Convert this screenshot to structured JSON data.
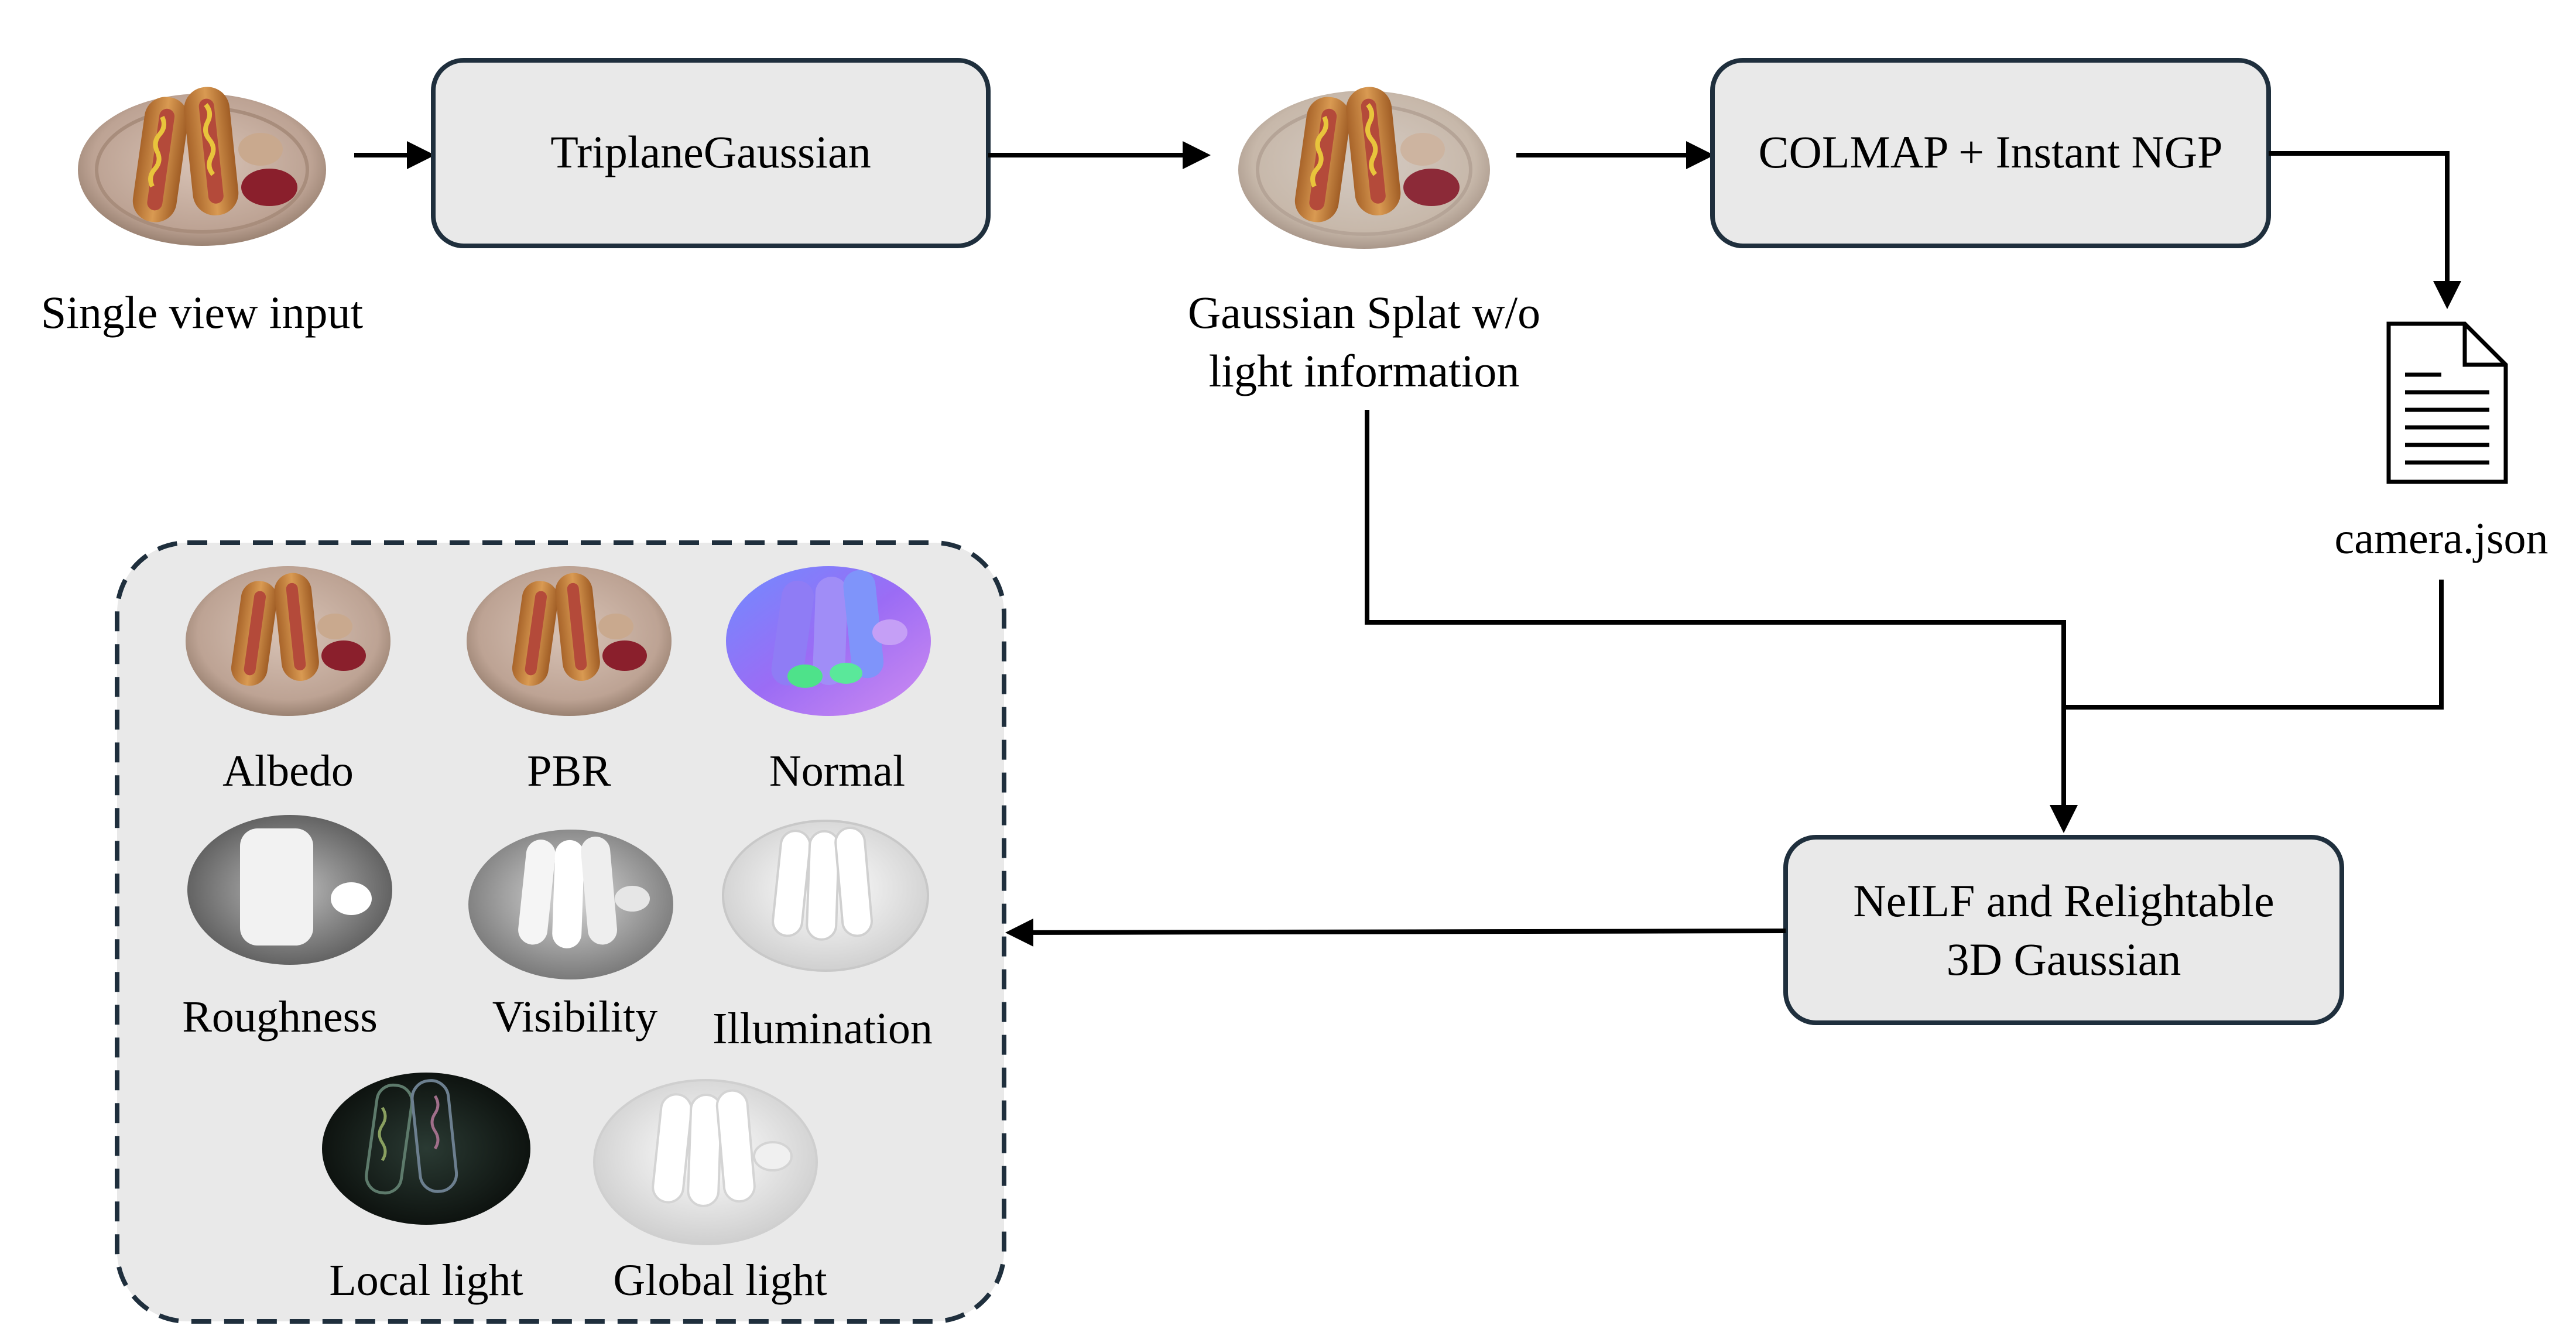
{
  "nodes": {
    "single_view_input": "Single view input",
    "triplane_gaussian": "TriplaneGaussian",
    "gaussian_splat_line1": "Gaussian Splat w/o",
    "gaussian_splat_line2": "light information",
    "colmap_ngp": "COLMAP + Instant NGP",
    "camera_json": "camera.json",
    "neilf_line1": "NeILF and Relightable",
    "neilf_line2": "3D Gaussian"
  },
  "outputs": {
    "albedo": "Albedo",
    "pbr": "PBR",
    "normal": "Normal",
    "roughness": "Roughness",
    "visibility": "Visibility",
    "illumination": "Illumination",
    "local_light": "Local light",
    "global_light": "Global light"
  },
  "colors": {
    "box_fill": "#e9e9e9",
    "box_stroke": "#1f2f3d",
    "arrow": "#000000"
  }
}
